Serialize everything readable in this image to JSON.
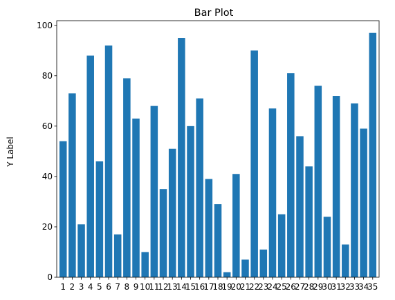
{
  "chart_data": {
    "type": "bar",
    "title": "Bar Plot",
    "xlabel": "",
    "ylabel": "Y Label",
    "categories": [
      "1",
      "2",
      "3",
      "4",
      "5",
      "6",
      "7",
      "8",
      "9",
      "10",
      "11",
      "12",
      "13",
      "14",
      "15",
      "16",
      "17",
      "18",
      "19",
      "20",
      "21",
      "22",
      "23",
      "24",
      "25",
      "26",
      "27",
      "28",
      "29",
      "30",
      "31",
      "32",
      "33",
      "34",
      "35"
    ],
    "values": [
      54,
      73,
      21,
      88,
      46,
      92,
      17,
      79,
      63,
      10,
      68,
      35,
      51,
      95,
      60,
      71,
      39,
      29,
      2,
      41,
      7,
      90,
      11,
      67,
      25,
      81,
      56,
      44,
      76,
      24,
      72,
      13,
      69,
      59,
      97
    ],
    "ylim": [
      0,
      101.85
    ],
    "yticks": [
      0,
      20,
      40,
      60,
      80,
      100
    ],
    "grid": false,
    "legend": "none",
    "bar_color": "#1f77b4"
  }
}
